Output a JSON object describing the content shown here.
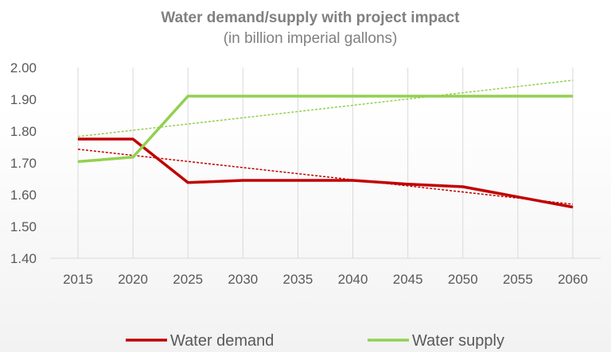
{
  "chart_data": {
    "type": "line",
    "title": "Water demand/supply with project impact",
    "subtitle": "(in billion imperial gallons)",
    "xlabel": "",
    "ylabel": "",
    "categories": [
      "2015",
      "2020",
      "2025",
      "2030",
      "2035",
      "2040",
      "2045",
      "2050",
      "2055",
      "2060"
    ],
    "ylim": [
      1.4,
      2.0
    ],
    "yticks": [
      "1.40",
      "1.50",
      "1.60",
      "1.70",
      "1.80",
      "1.90",
      "2.00"
    ],
    "grid": "vertical",
    "legend": "bottom",
    "series": [
      {
        "name": "Water demand",
        "color": "#c00000",
        "values": [
          1.775,
          1.775,
          1.638,
          1.645,
          1.645,
          1.645,
          1.633,
          1.625,
          1.593,
          1.561
        ],
        "trendline": [
          1.743,
          1.57
        ]
      },
      {
        "name": "Water supply",
        "color": "#92d050",
        "values": [
          1.704,
          1.718,
          1.91,
          1.91,
          1.91,
          1.91,
          1.91,
          1.91,
          1.91,
          1.91
        ],
        "trendline": [
          1.783,
          1.96
        ]
      }
    ]
  }
}
